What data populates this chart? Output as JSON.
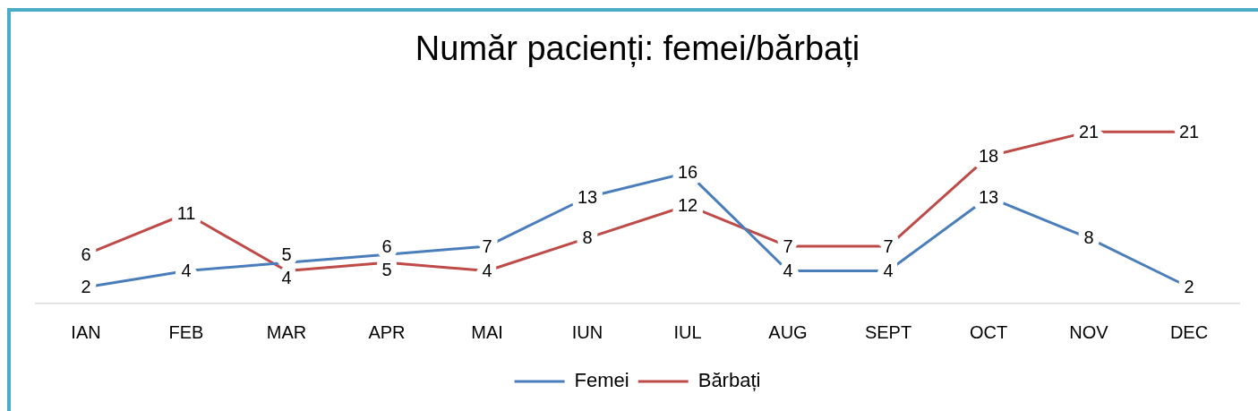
{
  "chart_data": {
    "type": "line",
    "title": "Număr pacienți: femei/bărbați",
    "categories": [
      "IAN",
      "FEB",
      "MAR",
      "APR",
      "MAI",
      "IUN",
      "IUL",
      "AUG",
      "SEPT",
      "OCT",
      "NOV",
      "DEC"
    ],
    "series": [
      {
        "name": "Femei",
        "color": "#4a7ebb",
        "values": [
          2,
          4,
          5,
          6,
          7,
          13,
          16,
          4,
          4,
          13,
          8,
          2
        ]
      },
      {
        "name": "Bărbați",
        "color": "#be4b48",
        "values": [
          6,
          11,
          4,
          5,
          4,
          8,
          12,
          7,
          7,
          18,
          21,
          21
        ]
      }
    ],
    "tick_labels": "x",
    "data_labels": true,
    "legend": "bottom",
    "marker": "none",
    "line_style": "solid"
  }
}
